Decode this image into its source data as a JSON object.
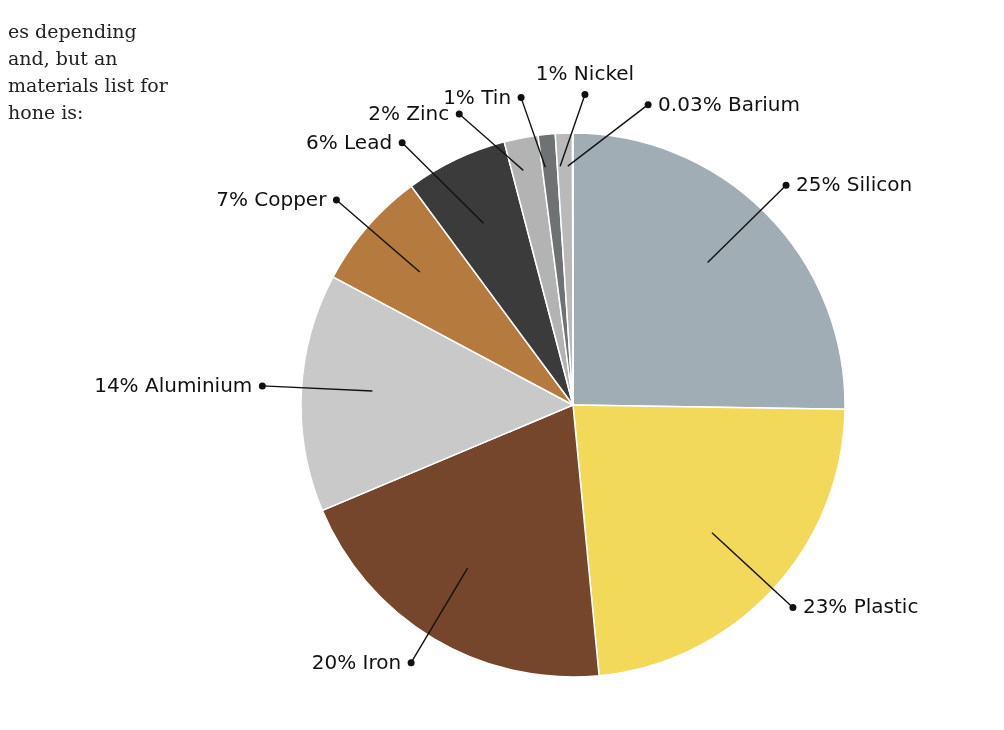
{
  "chart_data": {
    "type": "pie",
    "categories": [
      "Silicon",
      "Plastic",
      "Iron",
      "Aluminium",
      "Copper",
      "Lead",
      "Zinc",
      "Tin",
      "Nickel",
      "Barium"
    ],
    "values": [
      25,
      23,
      20,
      14,
      7,
      6,
      2,
      1,
      1,
      0.03
    ],
    "value_labels": [
      "25%",
      "23%",
      "20%",
      "14%",
      "7%",
      "6%",
      "2%",
      "1%",
      "1%",
      "0.03%"
    ],
    "colors": [
      "#a1adb5",
      "#f3d95a",
      "#76462c",
      "#c9c9c9",
      "#b57a3e",
      "#3b3b3b",
      "#b3b3b3",
      "#6e7272",
      "#b9b9b9",
      "#8a8f93"
    ],
    "annotations": [
      "es depending\nand, but an\nmaterials list for\nhone is:"
    ],
    "legend": false
  }
}
